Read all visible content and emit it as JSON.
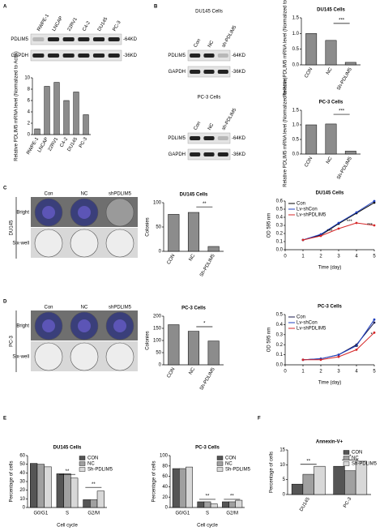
{
  "panels": [
    "A",
    "B",
    "C",
    "D",
    "E",
    "F"
  ],
  "blots": [
    {
      "lanes": [
        "RWPE-1",
        "LNCAP",
        "22RV1",
        "C4-2",
        "DU145",
        "PC-3"
      ],
      "rows": [
        [
          "PDLIM5",
          "-64KD"
        ],
        [
          "GAPDH",
          "-36KD"
        ]
      ]
    },
    {
      "title": "DU145 Cells",
      "lanes": [
        "Con",
        "NC",
        "sh-PDLIM5"
      ],
      "rows": [
        [
          "PDLIM5",
          "-64KD"
        ],
        [
          "GAPDH",
          "-36KD"
        ]
      ]
    },
    {
      "title": "PC-3 Cells",
      "lanes": [
        "Con",
        "NC",
        "sh-PDLIM5"
      ],
      "rows": [
        [
          "PDLIM5",
          "-64KD"
        ],
        [
          "GAPDH",
          "-36KD"
        ]
      ]
    }
  ],
  "colony_images": [
    {
      "cell": "DU145",
      "conditions": [
        "Con",
        "NC",
        "shPDLIM5"
      ],
      "rows": [
        "Bright",
        "Six-well"
      ]
    },
    {
      "cell": "PC-3",
      "conditions": [
        "Con",
        "NC",
        "shPDLIM5"
      ],
      "rows": [
        "Bright",
        "Six-well"
      ]
    }
  ],
  "chart_data": [
    {
      "type": "bar",
      "ylabel": "Relative PDLIM5 mRNA level (Normalized to Actin)",
      "categories": [
        "RWPE-1",
        "LNCAP",
        "22RV1",
        "C4-2",
        "DU145",
        "PC-3"
      ],
      "values": [
        1,
        8.5,
        9.2,
        6,
        7.5,
        3.5
      ],
      "color": "#8c8c8c",
      "ylim": [
        0,
        10
      ],
      "yticks": [
        0,
        2,
        4,
        6,
        8,
        10
      ]
    },
    {
      "type": "bar",
      "title": "DU145 Cells",
      "ylabel": "Relative PDLIM5 mRNA level (Normalized to Actin)",
      "categories": [
        "CON",
        "NC",
        "Sh-PDLIM5"
      ],
      "values": [
        1.0,
        0.78,
        0.08
      ],
      "color": "#8c8c8c",
      "ylim": [
        0,
        1.5
      ],
      "yticks": [
        {
          "value": 0,
          "label": "0.0"
        },
        {
          "value": 0.5,
          "label": "0.5"
        },
        {
          "value": 1,
          "label": "1.0"
        },
        {
          "value": 1.5,
          "label": "1.5"
        }
      ],
      "annotations": [
        "***"
      ]
    },
    {
      "type": "bar",
      "title": "PC-3 Cells",
      "ylabel": "Relative PDLIM5 mRNA level (Normalized to Actin)",
      "categories": [
        "CON",
        "NC",
        "Sh-PDLIM5"
      ],
      "values": [
        1.0,
        1.03,
        0.1
      ],
      "color": "#8c8c8c",
      "ylim": [
        0,
        1.5
      ],
      "yticks": [
        {
          "value": 0,
          "label": "0.0"
        },
        {
          "value": 0.5,
          "label": "0.5"
        },
        {
          "value": 1,
          "label": "1.0"
        },
        {
          "value": 1.5,
          "label": "1.5"
        }
      ],
      "annotations": [
        "***"
      ]
    },
    {
      "type": "bar",
      "title": "DU145 Cells",
      "ylabel": "Colonies",
      "categories": [
        "CON",
        "NC",
        "Sh-PDLIM5"
      ],
      "values": [
        76,
        80,
        10
      ],
      "color": "#8c8c8c",
      "ylim": [
        0,
        100
      ],
      "yticks": [
        0,
        50,
        100
      ],
      "annotations": [
        "**"
      ]
    },
    {
      "type": "line",
      "title": "DU145 Cells",
      "xlabel": "Time (day)",
      "ylabel": "OD 595 nm",
      "x": [
        1,
        2,
        3,
        4,
        5
      ],
      "xlim": [
        0,
        5
      ],
      "xticks": [
        0,
        1,
        2,
        3,
        4,
        5
      ],
      "ylim": [
        0,
        0.6
      ],
      "yticks": [
        {
          "value": 0,
          "label": "0.0"
        },
        {
          "value": 0.1,
          "label": "0.1"
        },
        {
          "value": 0.2,
          "label": "0.2"
        },
        {
          "value": 0.3,
          "label": "0.3"
        },
        {
          "value": 0.4,
          "label": "0.4"
        },
        {
          "value": 0.5,
          "label": "0.5"
        },
        {
          "value": 0.6,
          "label": "0.6"
        }
      ],
      "legend": "upper left",
      "series": [
        {
          "name": "Con",
          "color": "#000000",
          "values": [
            0.12,
            0.18,
            0.32,
            0.45,
            0.58
          ]
        },
        {
          "name": "Lv-shCon",
          "color": "#1f3fbf",
          "values": [
            0.12,
            0.19,
            0.33,
            0.46,
            0.6
          ]
        },
        {
          "name": "Lv-shPDLIM5",
          "color": "#d62728",
          "values": [
            0.12,
            0.17,
            0.26,
            0.33,
            0.3
          ]
        }
      ],
      "annotations": [
        "***",
        "***",
        "***"
      ]
    },
    {
      "type": "bar",
      "title": "PC-3 Cells",
      "ylabel": "Colonies",
      "categories": [
        "CON",
        "NC",
        "Sh-PDLIM5"
      ],
      "values": [
        165,
        138,
        98
      ],
      "color": "#8c8c8c",
      "ylim": [
        0,
        200
      ],
      "yticks": [
        0,
        50,
        100,
        150,
        200
      ],
      "annotations": [
        "*"
      ]
    },
    {
      "type": "line",
      "title": "PC-3 Cells",
      "xlabel": "Time (day)",
      "ylabel": "OD 595 nm",
      "x": [
        1,
        2,
        3,
        4,
        5
      ],
      "xlim": [
        0,
        5
      ],
      "xticks": [
        0,
        1,
        2,
        3,
        4,
        5
      ],
      "ylim": [
        0,
        0.5
      ],
      "yticks": [
        {
          "value": 0,
          "label": "0.0"
        },
        {
          "value": 0.1,
          "label": "0.1"
        },
        {
          "value": 0.2,
          "label": "0.2"
        },
        {
          "value": 0.3,
          "label": "0.3"
        },
        {
          "value": 0.4,
          "label": "0.4"
        },
        {
          "value": 0.5,
          "label": "0.5"
        }
      ],
      "legend": "upper left",
      "series": [
        {
          "name": "Con",
          "color": "#1a1a4d",
          "values": [
            0.05,
            0.06,
            0.1,
            0.2,
            0.42
          ]
        },
        {
          "name": "Lv-shCon",
          "color": "#1f3fbf",
          "values": [
            0.05,
            0.06,
            0.1,
            0.19,
            0.45
          ]
        },
        {
          "name": "Lv-shPDLIM5",
          "color": "#d62728",
          "values": [
            0.05,
            0.05,
            0.08,
            0.15,
            0.32
          ]
        }
      ],
      "annotations": [
        "**",
        "*"
      ]
    },
    {
      "type": "bar",
      "title": "DU145 Cells",
      "xlabel": "Cell cycle",
      "ylabel": "Percentage of cells",
      "categories": [
        "G0/G1",
        "S",
        "G2/M"
      ],
      "ylim": [
        0,
        60
      ],
      "yticks": [
        0,
        10,
        20,
        30,
        40,
        50,
        60
      ],
      "legend": "upper right",
      "series": [
        {
          "name": "CON",
          "color": "#555555",
          "values": [
            51,
            39,
            9
          ]
        },
        {
          "name": "NC",
          "color": "#a0a0a0",
          "values": [
            50,
            39,
            9
          ]
        },
        {
          "name": "Sh-PDLIM5",
          "color": "#d8d8d8",
          "values": [
            47,
            34,
            19
          ]
        }
      ],
      "annotations": [
        "**",
        "**"
      ]
    },
    {
      "type": "bar",
      "title": "PC-3 Cells",
      "xlabel": "Cell cycle",
      "ylabel": "Percentage of cells",
      "categories": [
        "G0/G1",
        "S",
        "G2/M"
      ],
      "ylim": [
        0,
        100
      ],
      "yticks": [
        0,
        20,
        40,
        60,
        80,
        100
      ],
      "legend": "upper right",
      "series": [
        {
          "name": "CON",
          "color": "#555555",
          "values": [
            75,
            11,
            11
          ]
        },
        {
          "name": "NC",
          "color": "#a0a0a0",
          "values": [
            75,
            11,
            11
          ]
        },
        {
          "name": "Sh-PDLIM5",
          "color": "#d8d8d8",
          "values": [
            78,
            7,
            14
          ]
        }
      ],
      "annotations": [
        "**",
        "**"
      ]
    },
    {
      "type": "bar",
      "title": "Annexin-V+",
      "ylabel": "Percentage of cells",
      "categories": [
        "DU145",
        "PC-3"
      ],
      "ylim": [
        0,
        15
      ],
      "yticks": [
        0,
        5,
        10,
        15
      ],
      "legend": "upper right",
      "series": [
        {
          "name": "CON",
          "color": "#555555",
          "values": [
            3.5,
            9.5
          ]
        },
        {
          "name": "NC",
          "color": "#a0a0a0",
          "values": [
            6.8,
            8
          ]
        },
        {
          "name": "Sh-PDLIM5",
          "color": "#d8d8d8",
          "values": [
            9.5,
            11.2
          ]
        }
      ],
      "annotations": [
        "**",
        "*"
      ]
    }
  ]
}
